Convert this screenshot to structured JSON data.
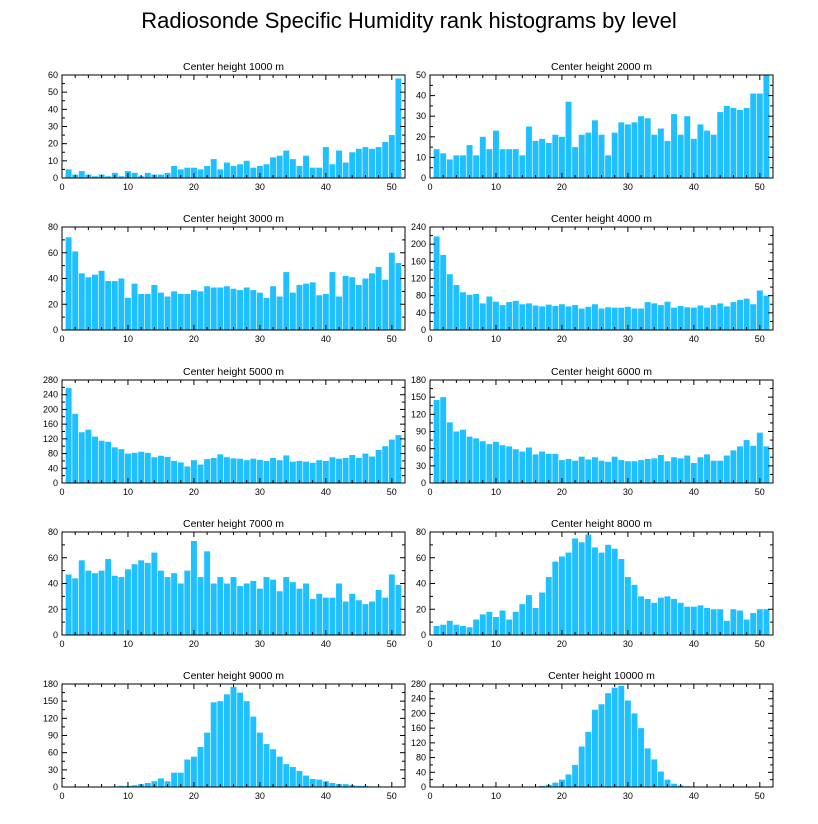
{
  "title": "Radiosonde Specific Humidity rank histograms by level",
  "chart_data": [
    {
      "type": "bar",
      "title": "Center height 1000 m",
      "xlim": [
        0,
        52
      ],
      "ylim": [
        0,
        60
      ],
      "xticks": [
        0,
        10,
        20,
        30,
        40,
        50
      ],
      "yticks": [
        0,
        10,
        20,
        30,
        40,
        50,
        60
      ],
      "x": [
        1,
        2,
        3,
        4,
        5,
        6,
        7,
        8,
        9,
        10,
        11,
        12,
        13,
        14,
        15,
        16,
        17,
        18,
        19,
        20,
        21,
        22,
        23,
        24,
        25,
        26,
        27,
        28,
        29,
        30,
        31,
        32,
        33,
        34,
        35,
        36,
        37,
        38,
        39,
        40,
        41,
        42,
        43,
        44,
        45,
        46,
        47,
        48,
        49,
        50,
        51
      ],
      "values": [
        5,
        2,
        4,
        2,
        1,
        2,
        1,
        3,
        1,
        4,
        3,
        1,
        3,
        2,
        2,
        3,
        7,
        5,
        6,
        6,
        5,
        7,
        11,
        5,
        9,
        7,
        8,
        10,
        6,
        7,
        8,
        12,
        13,
        16,
        11,
        7,
        13,
        6,
        6,
        18,
        8,
        16,
        9,
        15,
        17,
        18,
        17,
        18,
        21,
        25,
        58
      ]
    },
    {
      "type": "bar",
      "title": "Center height 2000 m",
      "xlim": [
        0,
        52
      ],
      "ylim": [
        0,
        50
      ],
      "xticks": [
        0,
        10,
        20,
        30,
        40,
        50
      ],
      "yticks": [
        0,
        10,
        20,
        30,
        40,
        50
      ],
      "x": [
        1,
        2,
        3,
        4,
        5,
        6,
        7,
        8,
        9,
        10,
        11,
        12,
        13,
        14,
        15,
        16,
        17,
        18,
        19,
        20,
        21,
        22,
        23,
        24,
        25,
        26,
        27,
        28,
        29,
        30,
        31,
        32,
        33,
        34,
        35,
        36,
        37,
        38,
        39,
        40,
        41,
        42,
        43,
        44,
        45,
        46,
        47,
        48,
        49,
        50,
        51
      ],
      "values": [
        14,
        12,
        9,
        11,
        11,
        16,
        11,
        20,
        14,
        23,
        14,
        14,
        14,
        11,
        25,
        18,
        19,
        17,
        21,
        20,
        37,
        15,
        21,
        22,
        28,
        21,
        11,
        22,
        27,
        26,
        27,
        30,
        29,
        21,
        24,
        18,
        31,
        21,
        30,
        19,
        26,
        23,
        21,
        32,
        35,
        34,
        33,
        34,
        41,
        41,
        50
      ]
    },
    {
      "type": "bar",
      "title": "Center height 3000 m",
      "xlim": [
        0,
        52
      ],
      "ylim": [
        0,
        80
      ],
      "xticks": [
        0,
        10,
        20,
        30,
        40,
        50
      ],
      "yticks": [
        0,
        20,
        40,
        60,
        80
      ],
      "x": [
        1,
        2,
        3,
        4,
        5,
        6,
        7,
        8,
        9,
        10,
        11,
        12,
        13,
        14,
        15,
        16,
        17,
        18,
        19,
        20,
        21,
        22,
        23,
        24,
        25,
        26,
        27,
        28,
        29,
        30,
        31,
        32,
        33,
        34,
        35,
        36,
        37,
        38,
        39,
        40,
        41,
        42,
        43,
        44,
        45,
        46,
        47,
        48,
        49,
        50,
        51
      ],
      "values": [
        72,
        61,
        44,
        41,
        43,
        46,
        38,
        38,
        40,
        25,
        36,
        28,
        28,
        35,
        29,
        26,
        30,
        28,
        28,
        31,
        30,
        34,
        33,
        33,
        34,
        32,
        31,
        33,
        31,
        29,
        25,
        34,
        26,
        45,
        29,
        35,
        36,
        37,
        27,
        28,
        45,
        26,
        42,
        41,
        35,
        40,
        44,
        49,
        39,
        60,
        52
      ]
    },
    {
      "type": "bar",
      "title": "Center height 4000 m",
      "xlim": [
        0,
        52
      ],
      "ylim": [
        0,
        240
      ],
      "xticks": [
        0,
        10,
        20,
        30,
        40,
        50
      ],
      "yticks": [
        0,
        40,
        80,
        120,
        160,
        200,
        240
      ],
      "x": [
        1,
        2,
        3,
        4,
        5,
        6,
        7,
        8,
        9,
        10,
        11,
        12,
        13,
        14,
        15,
        16,
        17,
        18,
        19,
        20,
        21,
        22,
        23,
        24,
        25,
        26,
        27,
        28,
        29,
        30,
        31,
        32,
        33,
        34,
        35,
        36,
        37,
        38,
        39,
        40,
        41,
        42,
        43,
        44,
        45,
        46,
        47,
        48,
        49,
        50,
        51
      ],
      "values": [
        218,
        175,
        130,
        105,
        88,
        82,
        84,
        62,
        78,
        66,
        58,
        65,
        68,
        60,
        62,
        57,
        55,
        59,
        56,
        60,
        55,
        58,
        50,
        54,
        60,
        50,
        53,
        52,
        52,
        54,
        50,
        50,
        65,
        62,
        58,
        66,
        52,
        56,
        53,
        52,
        57,
        52,
        58,
        62,
        55,
        65,
        70,
        73,
        60,
        92,
        80
      ]
    },
    {
      "type": "bar",
      "title": "Center height 5000 m",
      "xlim": [
        0,
        52
      ],
      "ylim": [
        0,
        280
      ],
      "xticks": [
        0,
        10,
        20,
        30,
        40,
        50
      ],
      "yticks": [
        0,
        40,
        80,
        120,
        160,
        200,
        240,
        280
      ],
      "x": [
        1,
        2,
        3,
        4,
        5,
        6,
        7,
        8,
        9,
        10,
        11,
        12,
        13,
        14,
        15,
        16,
        17,
        18,
        19,
        20,
        21,
        22,
        23,
        24,
        25,
        26,
        27,
        28,
        29,
        30,
        31,
        32,
        33,
        34,
        35,
        36,
        37,
        38,
        39,
        40,
        41,
        42,
        43,
        44,
        45,
        46,
        47,
        48,
        49,
        50,
        51
      ],
      "values": [
        258,
        188,
        138,
        145,
        126,
        115,
        112,
        97,
        92,
        80,
        82,
        85,
        82,
        70,
        74,
        71,
        60,
        56,
        45,
        62,
        50,
        65,
        68,
        78,
        70,
        67,
        66,
        62,
        66,
        63,
        60,
        68,
        62,
        75,
        58,
        60,
        58,
        55,
        62,
        60,
        70,
        66,
        68,
        76,
        68,
        80,
        72,
        90,
        100,
        118,
        130
      ]
    },
    {
      "type": "bar",
      "title": "Center height 6000 m",
      "xlim": [
        0,
        52
      ],
      "ylim": [
        0,
        180
      ],
      "xticks": [
        0,
        10,
        20,
        30,
        40,
        50
      ],
      "yticks": [
        0,
        30,
        60,
        90,
        120,
        150,
        180
      ],
      "x": [
        1,
        2,
        3,
        4,
        5,
        6,
        7,
        8,
        9,
        10,
        11,
        12,
        13,
        14,
        15,
        16,
        17,
        18,
        19,
        20,
        21,
        22,
        23,
        24,
        25,
        26,
        27,
        28,
        29,
        30,
        31,
        32,
        33,
        34,
        35,
        36,
        37,
        38,
        39,
        40,
        41,
        42,
        43,
        44,
        45,
        46,
        47,
        48,
        49,
        50,
        51
      ],
      "values": [
        145,
        150,
        106,
        90,
        93,
        81,
        78,
        73,
        68,
        72,
        66,
        64,
        59,
        55,
        62,
        50,
        55,
        51,
        51,
        40,
        42,
        39,
        46,
        41,
        45,
        39,
        37,
        46,
        40,
        38,
        38,
        40,
        42,
        43,
        49,
        38,
        45,
        43,
        48,
        35,
        45,
        50,
        39,
        39,
        48,
        57,
        64,
        75,
        65,
        88,
        64
      ]
    },
    {
      "type": "bar",
      "title": "Center height 7000 m",
      "xlim": [
        0,
        52
      ],
      "ylim": [
        0,
        80
      ],
      "xticks": [
        0,
        10,
        20,
        30,
        40,
        50
      ],
      "yticks": [
        0,
        20,
        40,
        60,
        80
      ],
      "x": [
        1,
        2,
        3,
        4,
        5,
        6,
        7,
        8,
        9,
        10,
        11,
        12,
        13,
        14,
        15,
        16,
        17,
        18,
        19,
        20,
        21,
        22,
        23,
        24,
        25,
        26,
        27,
        28,
        29,
        30,
        31,
        32,
        33,
        34,
        35,
        36,
        37,
        38,
        39,
        40,
        41,
        42,
        43,
        44,
        45,
        46,
        47,
        48,
        49,
        50,
        51
      ],
      "values": [
        47,
        44,
        58,
        50,
        48,
        50,
        59,
        46,
        45,
        51,
        55,
        58,
        56,
        64,
        50,
        45,
        48,
        40,
        50,
        73,
        45,
        65,
        40,
        45,
        40,
        45,
        38,
        40,
        42,
        36,
        45,
        43,
        34,
        45,
        41,
        36,
        40,
        28,
        32,
        29,
        29,
        40,
        26,
        32,
        27,
        24,
        26,
        35,
        29,
        47,
        39
      ]
    },
    {
      "type": "bar",
      "title": "Center height 8000 m",
      "xlim": [
        0,
        52
      ],
      "ylim": [
        0,
        80
      ],
      "xticks": [
        0,
        10,
        20,
        30,
        40,
        50
      ],
      "yticks": [
        0,
        20,
        40,
        60,
        80
      ],
      "x": [
        1,
        2,
        3,
        4,
        5,
        6,
        7,
        8,
        9,
        10,
        11,
        12,
        13,
        14,
        15,
        16,
        17,
        18,
        19,
        20,
        21,
        22,
        23,
        24,
        25,
        26,
        27,
        28,
        29,
        30,
        31,
        32,
        33,
        34,
        35,
        36,
        37,
        38,
        39,
        40,
        41,
        42,
        43,
        44,
        45,
        46,
        47,
        48,
        49,
        50,
        51
      ],
      "values": [
        7,
        8,
        11,
        8,
        7,
        6,
        12,
        16,
        18,
        14,
        19,
        12,
        18,
        24,
        31,
        21,
        33,
        45,
        57,
        61,
        64,
        75,
        72,
        78,
        68,
        64,
        70,
        67,
        59,
        45,
        39,
        30,
        28,
        25,
        29,
        30,
        28,
        25,
        22,
        22,
        23,
        21,
        20,
        20,
        11,
        20,
        19,
        12,
        17,
        20,
        20
      ]
    },
    {
      "type": "bar",
      "title": "Center height 9000 m",
      "xlim": [
        0,
        52
      ],
      "ylim": [
        0,
        180
      ],
      "xticks": [
        0,
        10,
        20,
        30,
        40,
        50
      ],
      "yticks": [
        0,
        30,
        60,
        90,
        120,
        150,
        180
      ],
      "x": [
        1,
        2,
        3,
        4,
        5,
        6,
        7,
        8,
        9,
        10,
        11,
        12,
        13,
        14,
        15,
        16,
        17,
        18,
        19,
        20,
        21,
        22,
        23,
        24,
        25,
        26,
        27,
        28,
        29,
        30,
        31,
        32,
        33,
        34,
        35,
        36,
        37,
        38,
        39,
        40,
        41,
        42,
        43,
        44,
        45,
        46,
        47,
        48,
        49,
        50,
        51
      ],
      "values": [
        0,
        0,
        0,
        0,
        0,
        0,
        0,
        1,
        2,
        2,
        3,
        5,
        7,
        10,
        15,
        10,
        25,
        25,
        48,
        53,
        70,
        95,
        148,
        150,
        162,
        175,
        165,
        150,
        123,
        95,
        75,
        66,
        53,
        40,
        35,
        28,
        20,
        14,
        13,
        10,
        7,
        5,
        5,
        3,
        2,
        2,
        1,
        1,
        0,
        0,
        1
      ]
    },
    {
      "type": "bar",
      "title": "Center height 10000 m",
      "xlim": [
        0,
        52
      ],
      "ylim": [
        0,
        280
      ],
      "xticks": [
        0,
        10,
        20,
        30,
        40,
        50
      ],
      "yticks": [
        0,
        40,
        80,
        120,
        160,
        200,
        240,
        280
      ],
      "x": [
        1,
        2,
        3,
        4,
        5,
        6,
        7,
        8,
        9,
        10,
        11,
        12,
        13,
        14,
        15,
        16,
        17,
        18,
        19,
        20,
        21,
        22,
        23,
        24,
        25,
        26,
        27,
        28,
        29,
        30,
        31,
        32,
        33,
        34,
        35,
        36,
        37,
        38,
        39,
        40,
        41,
        42,
        43,
        44,
        45,
        46,
        47,
        48,
        49,
        50,
        51
      ],
      "values": [
        0,
        0,
        0,
        0,
        0,
        0,
        0,
        0,
        0,
        0,
        0,
        0,
        0,
        0,
        0,
        0,
        3,
        6,
        12,
        20,
        34,
        60,
        110,
        150,
        210,
        225,
        255,
        270,
        275,
        235,
        200,
        160,
        105,
        75,
        42,
        20,
        9,
        4,
        2,
        1,
        1,
        0,
        0,
        0,
        0,
        0,
        0,
        0,
        0,
        0,
        0
      ]
    }
  ]
}
